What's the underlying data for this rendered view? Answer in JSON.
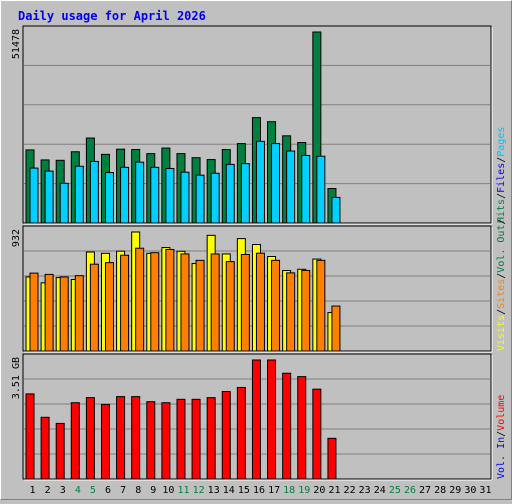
{
  "title": "Daily usage for April 2026",
  "colors": {
    "background": "#c0c0c0",
    "plot_bg": "#c0c0c0",
    "grid": "#808080",
    "title": "#0000ff",
    "hits": "#008040",
    "files": "#00c0ff",
    "pages": "#00d0ff",
    "visits": "#ffff00",
    "sites": "#ff8000",
    "volume": "#ff0000",
    "vol_in": "#0000ff",
    "vol_out": "#008040",
    "weekend_tick": "#008040"
  },
  "legend_top": [
    {
      "label": "Hits",
      "color": "#008040"
    },
    {
      "label": "/",
      "color": "#000000"
    },
    {
      "label": "Files",
      "color": "#0000ff"
    },
    {
      "label": "/",
      "color": "#000000"
    },
    {
      "label": "Pages",
      "color": "#00c0ff"
    }
  ],
  "legend_mid": [
    {
      "label": "Visits",
      "color": "#ffff00"
    },
    {
      "label": "/",
      "color": "#000000"
    },
    {
      "label": "Sites",
      "color": "#ff8000"
    },
    {
      "label": "/",
      "color": "#000000"
    },
    {
      "label": "Vol. Out",
      "color": "#008040"
    },
    {
      "label": "/",
      "color": "#000000"
    }
  ],
  "legend_bot": [
    {
      "label": "Vol. In",
      "color": "#0000ff"
    },
    {
      "label": "/",
      "color": "#000000"
    },
    {
      "label": "Volume",
      "color": "#ff0000"
    }
  ],
  "chart_data": {
    "type": "bar",
    "title": "Daily usage for April 2026",
    "days": [
      "1",
      "2",
      "3",
      "4",
      "5",
      "6",
      "7",
      "8",
      "9",
      "10",
      "11",
      "12",
      "13",
      "14",
      "15",
      "16",
      "17",
      "18",
      "19",
      "20",
      "21",
      "22",
      "23",
      "24",
      "25",
      "26",
      "27",
      "28",
      "29",
      "30",
      "31"
    ],
    "weekend_days": [
      4,
      5,
      11,
      12,
      18,
      19,
      25,
      26
    ],
    "panels": [
      {
        "name": "hits-files-pages",
        "ymax_label": "51478",
        "ymax": 51478,
        "series": [
          {
            "name": "Hits",
            "color": "#008040",
            "values": [
              19700,
              17000,
              16900,
              19200,
              22900,
              18500,
              19900,
              19800,
              18700,
              20200,
              18700,
              17600,
              17100,
              19800,
              21400,
              28400,
              27300,
              23500,
              21700,
              51478,
              9300,
              0,
              0,
              0,
              0,
              0,
              0,
              0,
              0,
              0,
              0
            ]
          },
          {
            "name": "Files",
            "color": "#00d0ff",
            "values": [
              14800,
              14000,
              10700,
              15300,
              16600,
              13600,
              15000,
              16400,
              15000,
              14700,
              13700,
              12900,
              13400,
              15800,
              16000,
              22000,
              21400,
              19400,
              18200,
              18000,
              6900,
              0,
              0,
              0,
              0,
              0,
              0,
              0,
              0,
              0,
              0
            ]
          },
          {
            "name": "Pages",
            "color": "#00d0ff",
            "values": [
              14800,
              14000,
              10700,
              15300,
              16600,
              13600,
              15000,
              16400,
              15000,
              14700,
              13700,
              12900,
              13400,
              15800,
              16000,
              22000,
              21400,
              19400,
              18200,
              18000,
              6900,
              0,
              0,
              0,
              0,
              0,
              0,
              0,
              0,
              0,
              0
            ]
          }
        ]
      },
      {
        "name": "visits-sites",
        "ymax_label": "932",
        "ymax": 932,
        "series": [
          {
            "name": "Visits",
            "color": "#ffff00",
            "values": [
              580,
              534,
              575,
              560,
              775,
              765,
              782,
              932,
              765,
              810,
              781,
              685,
              906,
              760,
              880,
              834,
              740,
              630,
              640,
              720,
              301,
              0,
              0,
              0,
              0,
              0,
              0,
              0,
              0,
              0,
              0
            ]
          },
          {
            "name": "Sites",
            "color": "#ff8000",
            "values": [
              610,
              600,
              580,
              590,
              680,
              692,
              750,
              805,
              770,
              795,
              760,
              710,
              760,
              700,
              756,
              766,
              710,
              612,
              631,
              710,
              352,
              0,
              0,
              0,
              0,
              0,
              0,
              0,
              0,
              0,
              0
            ]
          }
        ]
      },
      {
        "name": "volume",
        "ymax_label": "3.51 GB",
        "ymax": 3.51,
        "series": [
          {
            "name": "Volume",
            "color": "#ff0000",
            "values": [
              2.51,
              1.82,
              1.64,
              2.25,
              2.4,
              2.2,
              2.43,
              2.43,
              2.28,
              2.25,
              2.35,
              2.35,
              2.4,
              2.58,
              2.7,
              3.51,
              3.51,
              3.12,
              3.02,
              2.65,
              1.2,
              0,
              0,
              0,
              0,
              0,
              0,
              0,
              0,
              0,
              0
            ]
          }
        ]
      }
    ]
  }
}
